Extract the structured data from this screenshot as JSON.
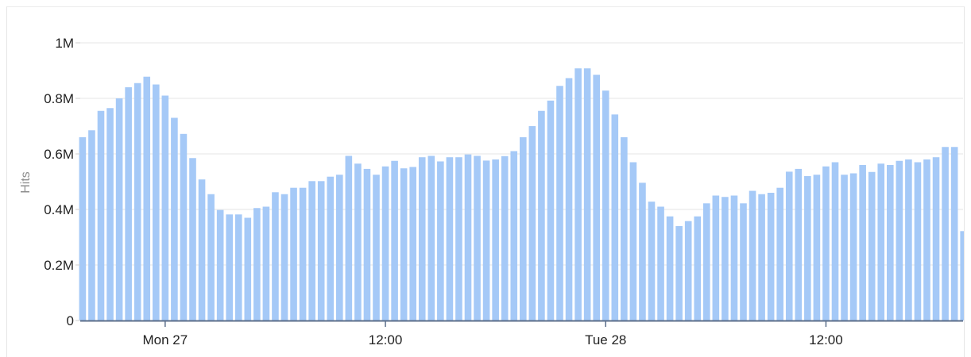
{
  "chart_data": {
    "type": "bar",
    "ylabel": "Hits",
    "xlabel": "",
    "ylim": [
      0,
      1000000
    ],
    "y_ticks": [
      {
        "value": 0,
        "label": "0"
      },
      {
        "value": 200000,
        "label": "0.2M"
      },
      {
        "value": 400000,
        "label": "0.4M"
      },
      {
        "value": 600000,
        "label": "0.6M"
      },
      {
        "value": 800000,
        "label": "0.8M"
      },
      {
        "value": 1000000,
        "label": "1M"
      }
    ],
    "x_ticks": [
      {
        "label": "Mon 27",
        "bar_index": 9
      },
      {
        "label": "12:00",
        "bar_index": 33
      },
      {
        "label": "Tue 28",
        "bar_index": 57
      },
      {
        "label": "12:00",
        "bar_index": 81
      }
    ],
    "grid": true,
    "bar_color": "#a5c9f7",
    "axis_color": "#5b6e8a",
    "values": [
      660000,
      685000,
      755000,
      765000,
      800000,
      840000,
      855000,
      878000,
      850000,
      810000,
      730000,
      672000,
      585000,
      508000,
      455000,
      398000,
      382000,
      382000,
      370000,
      405000,
      410000,
      462000,
      455000,
      478000,
      478000,
      502000,
      502000,
      518000,
      525000,
      593000,
      565000,
      546000,
      525000,
      555000,
      575000,
      548000,
      553000,
      588000,
      593000,
      573000,
      588000,
      588000,
      598000,
      593000,
      576000,
      580000,
      592000,
      610000,
      660000,
      700000,
      755000,
      792000,
      845000,
      873000,
      908000,
      908000,
      885000,
      828000,
      742000,
      660000,
      570000,
      496000,
      428000,
      410000,
      375000,
      340000,
      358000,
      375000,
      422000,
      450000,
      445000,
      450000,
      422000,
      467000,
      455000,
      460000,
      478000,
      536000,
      546000,
      520000,
      525000,
      555000,
      570000,
      525000,
      530000,
      560000,
      535000,
      565000,
      560000,
      575000,
      580000,
      570000,
      580000,
      588000,
      625000,
      625000,
      322000
    ]
  }
}
